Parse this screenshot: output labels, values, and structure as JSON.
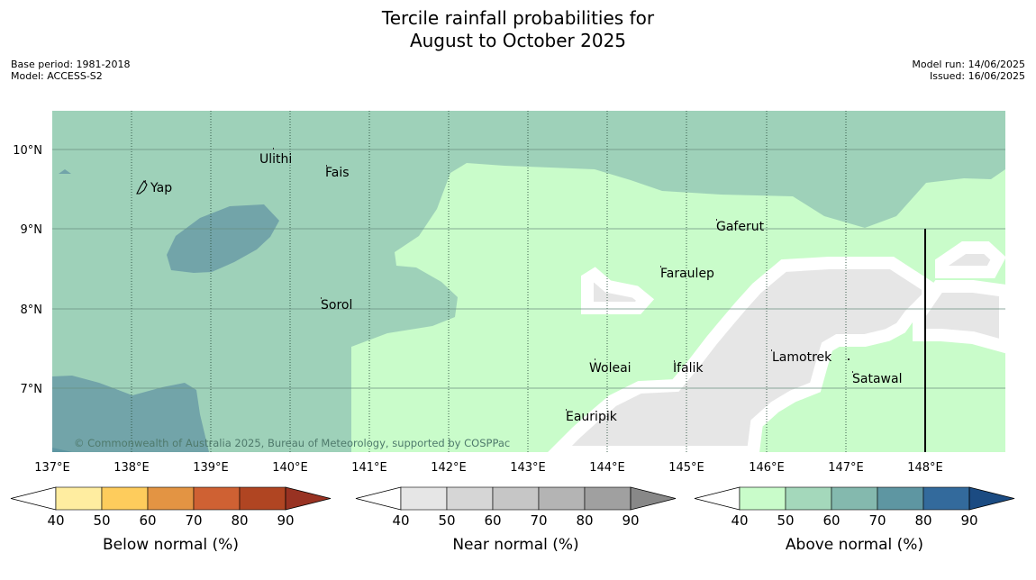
{
  "title": {
    "line1": "Tercile rainfall probabilities for",
    "line2": "August to October 2025"
  },
  "meta_left": {
    "base_period": "Base period: 1981-2018",
    "model": "Model: ACCESS-S2"
  },
  "meta_right": {
    "model_run": "Model run: 14/06/2025",
    "issued": "Issued: 16/06/2025"
  },
  "map": {
    "lon_labels": [
      "137°E",
      "138°E",
      "139°E",
      "140°E",
      "141°E",
      "142°E",
      "143°E",
      "144°E",
      "145°E",
      "146°E",
      "147°E",
      "148°E"
    ],
    "lat_labels": [
      "10°N",
      "9°N",
      "8°N",
      "7°N"
    ],
    "places": [
      {
        "name": "Ulithi"
      },
      {
        "name": "Fais"
      },
      {
        "name": "Yap"
      },
      {
        "name": "Gaferut"
      },
      {
        "name": "Faraulep"
      },
      {
        "name": "Sorol"
      },
      {
        "name": "Lamotrek"
      },
      {
        "name": "Woleai"
      },
      {
        "name": "Ifalik"
      },
      {
        "name": "Satawal"
      },
      {
        "name": "Eauripik"
      }
    ],
    "copyright": "© Commonwealth of Australia 2025, Bureau of Meteorology, supported by COSPPac",
    "colors": {
      "above_50": "#c9fcca",
      "above_60": "#9ed1b9",
      "above_70": "#72a4a9",
      "near_40": "#e6e6e6",
      "ocean_bg": "#9ed1b9"
    }
  },
  "colorbars": [
    {
      "label": "Below normal (%)",
      "ticks": [
        "40",
        "50",
        "60",
        "70",
        "80",
        "90"
      ],
      "colors": [
        "#ffeda0",
        "#fecc5c",
        "#e39443",
        "#cf6133",
        "#b04522",
        "#983222"
      ]
    },
    {
      "label": "Near normal (%)",
      "ticks": [
        "40",
        "50",
        "60",
        "70",
        "80",
        "90"
      ],
      "colors": [
        "#e6e6e6",
        "#d6d6d6",
        "#c6c6c6",
        "#b4b4b4",
        "#a0a0a0",
        "#888888"
      ]
    },
    {
      "label": "Above normal (%)",
      "ticks": [
        "40",
        "50",
        "60",
        "70",
        "80",
        "90"
      ],
      "colors": [
        "#c9fcca",
        "#a4d8bb",
        "#84b9ae",
        "#5e96a2",
        "#336a9c",
        "#1b4b82"
      ]
    }
  ]
}
